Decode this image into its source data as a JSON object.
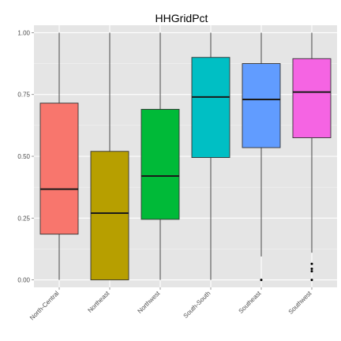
{
  "chart_data": {
    "type": "box",
    "title": "HHGridPct",
    "xlabel": "",
    "ylabel": "",
    "ylim": [
      -0.03,
      1.03
    ],
    "y_ticks": [
      0.0,
      0.25,
      0.5,
      0.75,
      1.0
    ],
    "y_tick_labels": [
      "0.00",
      "0.25",
      "0.50",
      "0.75",
      "1.00"
    ],
    "grid": true,
    "legend": "none",
    "categories": [
      "North-Central",
      "Northeast",
      "Northwest",
      "South-South",
      "Southeast",
      "Southwest"
    ],
    "boxes": [
      {
        "category": "North-Central",
        "color": "#F8766D",
        "whisker_low": 0.0,
        "q1": 0.185,
        "median": 0.367,
        "q3": 0.715,
        "whisker_high": 1.0,
        "outliers": []
      },
      {
        "category": "Northeast",
        "color": "#B79F00",
        "whisker_low": 0.0,
        "q1": 0.0,
        "median": 0.27,
        "q3": 0.52,
        "whisker_high": 1.0,
        "outliers": []
      },
      {
        "category": "Northwest",
        "color": "#00BA38",
        "whisker_low": 0.0,
        "q1": 0.245,
        "median": 0.42,
        "q3": 0.69,
        "whisker_high": 1.0,
        "outliers": []
      },
      {
        "category": "South-South",
        "color": "#00BFC4",
        "whisker_low": 0.0,
        "q1": 0.495,
        "median": 0.74,
        "q3": 0.9,
        "whisker_high": 1.0,
        "outliers": []
      },
      {
        "category": "Southeast",
        "color": "#619CFF",
        "whisker_low": 0.095,
        "q1": 0.535,
        "median": 0.73,
        "q3": 0.875,
        "whisker_high": 1.0,
        "outliers": [
          0.0
        ]
      },
      {
        "category": "Southwest",
        "color": "#F564E3",
        "whisker_low": 0.11,
        "q1": 0.575,
        "median": 0.76,
        "q3": 0.895,
        "whisker_high": 1.0,
        "outliers": [
          0.065,
          0.045,
          0.035,
          0.0
        ]
      }
    ]
  }
}
